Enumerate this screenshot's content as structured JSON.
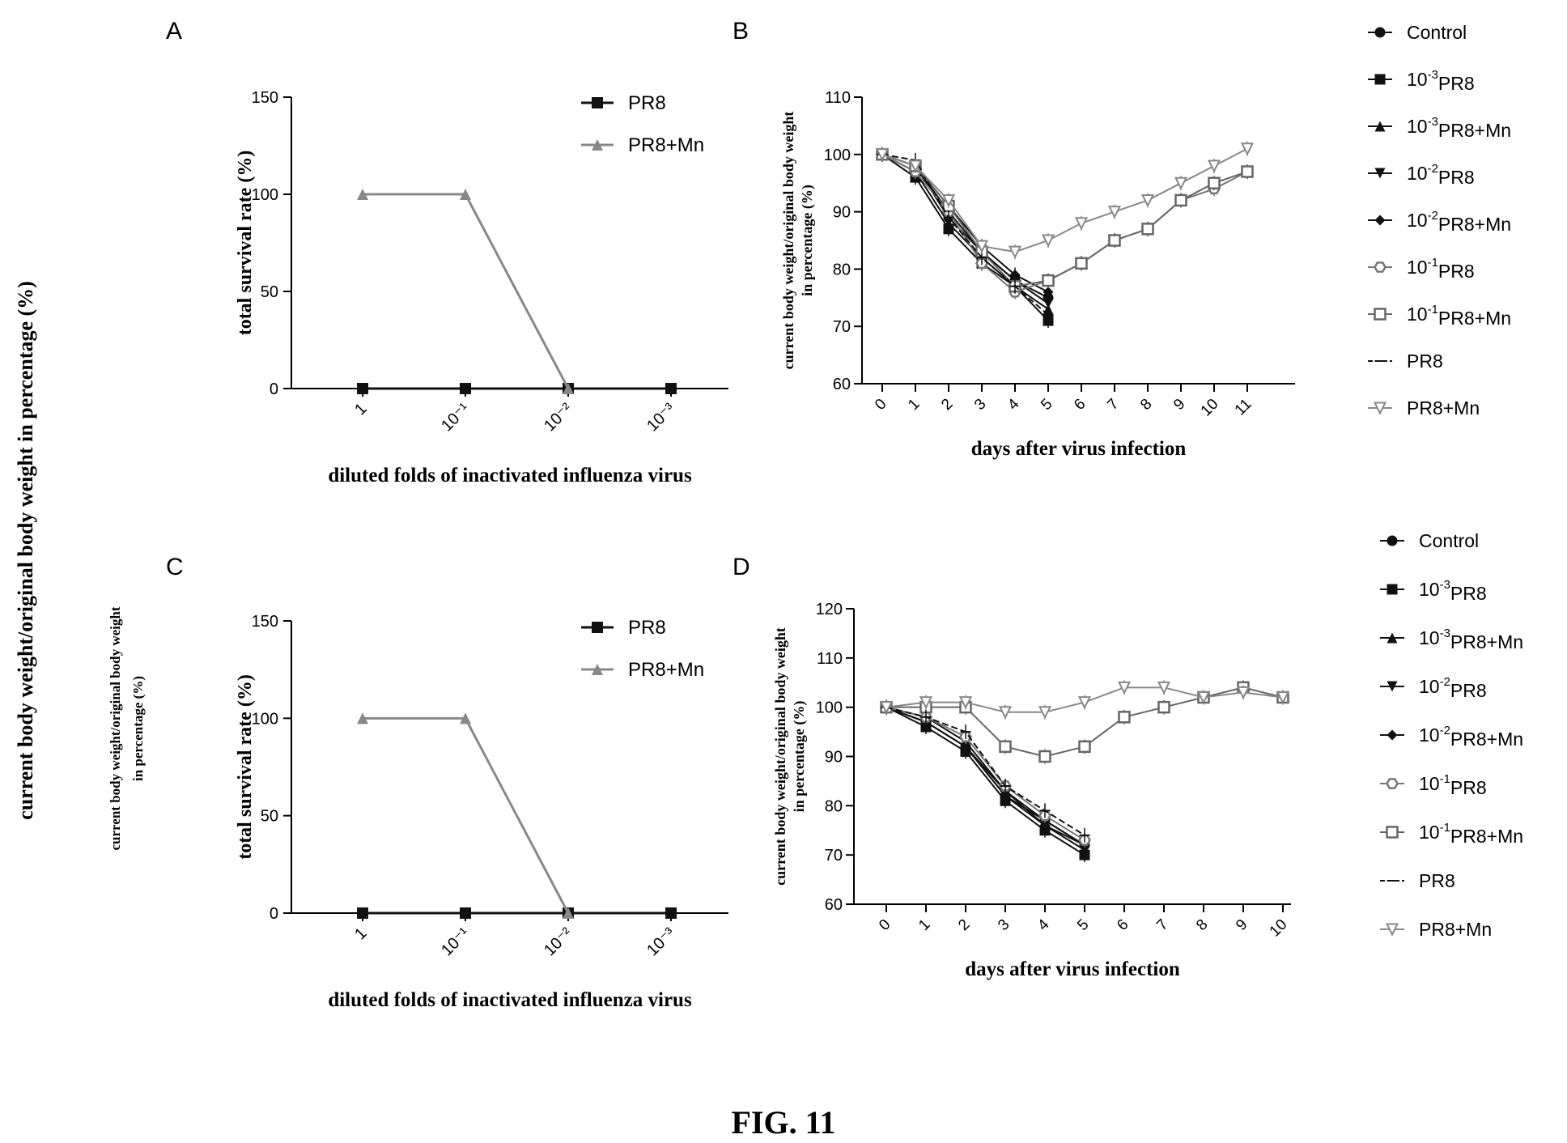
{
  "figure": {
    "caption": "FIG. 11",
    "side_label": "current body weight/original body weight in percentage (%)",
    "side_label_c_line1": "current body weight/original body weight",
    "side_label_c_line2": "in percentage (%)"
  },
  "chart_data": [
    {
      "panel": "A",
      "type": "line",
      "xlabel": "diluted folds of inactivated influenza virus",
      "ylabel": "total survival rate (%)",
      "categories": [
        "1",
        "10⁻¹",
        "10⁻²",
        "10⁻³"
      ],
      "ylim": [
        0,
        150
      ],
      "yticks": [
        0,
        50,
        100,
        150
      ],
      "legend_position": "top-right",
      "series": [
        {
          "name": "PR8",
          "marker": "square",
          "color": "#111111",
          "values": [
            0,
            0,
            0,
            0
          ]
        },
        {
          "name": "PR8+Mn",
          "marker": "triangle",
          "color": "#888888",
          "values": [
            100,
            100,
            0,
            null
          ]
        }
      ]
    },
    {
      "panel": "B",
      "type": "line",
      "xlabel": "days after virus infection",
      "ylabel_line1": "current body weight/original body weight",
      "ylabel_line2": "in percentage (%)",
      "x": [
        0,
        1,
        2,
        3,
        4,
        5,
        6,
        7,
        8,
        9,
        10,
        11
      ],
      "ylim": [
        60,
        110
      ],
      "yticks": [
        60,
        70,
        80,
        90,
        100,
        110
      ],
      "legend_position": "right",
      "series": [
        {
          "name": "Control",
          "sup": "",
          "marker": "circle",
          "color": "#111111",
          "values": [
            100,
            98,
            89,
            83,
            78,
            75,
            null,
            null,
            null,
            null,
            null,
            null
          ]
        },
        {
          "name": "PR8",
          "sup": "-3",
          "prefix": "10",
          "marker": "square",
          "color": "#111111",
          "values": [
            100,
            96,
            87,
            81,
            77,
            71,
            null,
            null,
            null,
            null,
            null,
            null
          ]
        },
        {
          "name": "PR8+Mn",
          "sup": "-3",
          "prefix": "10",
          "marker": "triangle",
          "color": "#111111",
          "values": [
            100,
            97,
            88,
            82,
            77,
            73,
            null,
            null,
            null,
            null,
            null,
            null
          ]
        },
        {
          "name": "PR8",
          "sup": "-2",
          "prefix": "10",
          "marker": "triangle-down",
          "color": "#111111",
          "values": [
            100,
            98,
            90,
            83,
            78,
            74,
            null,
            null,
            null,
            null,
            null,
            null
          ]
        },
        {
          "name": "PR8+Mn",
          "sup": "-2",
          "prefix": "10",
          "marker": "diamond",
          "color": "#111111",
          "values": [
            100,
            98,
            91,
            84,
            79,
            76,
            null,
            null,
            null,
            null,
            null,
            null
          ]
        },
        {
          "name": "PR8",
          "sup": "-1",
          "prefix": "10",
          "marker": "hexagon",
          "color": "#777777",
          "values": [
            100,
            97,
            90,
            81,
            76,
            78,
            81,
            85,
            87,
            92,
            94,
            97
          ]
        },
        {
          "name": "PR8+Mn",
          "sup": "-1",
          "prefix": "10",
          "marker": "square-open",
          "color": "#666666",
          "values": [
            100,
            98,
            91,
            83,
            77,
            78,
            81,
            85,
            87,
            92,
            95,
            97
          ]
        },
        {
          "name": "PR8",
          "sup": "",
          "marker": "dash",
          "color": "#111111",
          "values": [
            100,
            99,
            89,
            82,
            77,
            72,
            null,
            null,
            null,
            null,
            null,
            null
          ]
        },
        {
          "name": "PR8+Mn",
          "sup": "",
          "marker": "triangle-down-open",
          "color": "#888888",
          "values": [
            100,
            98,
            92,
            84,
            83,
            85,
            88,
            90,
            92,
            95,
            98,
            101
          ]
        }
      ]
    },
    {
      "panel": "C",
      "type": "line",
      "xlabel": "diluted folds of inactivated influenza virus",
      "ylabel": "total survival rate (%)",
      "categories": [
        "1",
        "10⁻¹",
        "10⁻²",
        "10⁻³"
      ],
      "ylim": [
        0,
        150
      ],
      "yticks": [
        0,
        50,
        100,
        150
      ],
      "legend_position": "top-right",
      "series": [
        {
          "name": "PR8",
          "marker": "square",
          "color": "#111111",
          "values": [
            0,
            0,
            0,
            0
          ]
        },
        {
          "name": "PR8+Mn",
          "marker": "triangle",
          "color": "#888888",
          "values": [
            100,
            100,
            0,
            null
          ]
        }
      ]
    },
    {
      "panel": "D",
      "type": "line",
      "xlabel": "days after virus infection",
      "ylabel_line1": "current body weight/original body weight",
      "ylabel_line2": "in percentage (%)",
      "x": [
        0,
        1,
        2,
        3,
        4,
        5,
        6,
        7,
        8,
        9,
        10
      ],
      "ylim": [
        60,
        120
      ],
      "yticks": [
        60,
        70,
        80,
        90,
        100,
        110,
        120
      ],
      "legend_position": "right",
      "series": [
        {
          "name": "Control",
          "sup": "",
          "marker": "circle",
          "color": "#111111",
          "values": [
            100,
            97,
            92,
            82,
            77,
            72,
            null,
            null,
            null,
            null,
            null
          ]
        },
        {
          "name": "PR8",
          "sup": "-3",
          "prefix": "10",
          "marker": "square",
          "color": "#111111",
          "values": [
            100,
            96,
            91,
            81,
            75,
            70,
            null,
            null,
            null,
            null,
            null
          ]
        },
        {
          "name": "PR8+Mn",
          "sup": "-3",
          "prefix": "10",
          "marker": "triangle",
          "color": "#111111",
          "values": [
            100,
            97,
            92,
            82,
            76,
            71,
            null,
            null,
            null,
            null,
            null
          ]
        },
        {
          "name": "PR8",
          "sup": "-2",
          "prefix": "10",
          "marker": "triangle-down",
          "color": "#111111",
          "values": [
            100,
            98,
            93,
            83,
            77,
            72,
            null,
            null,
            null,
            null,
            null
          ]
        },
        {
          "name": "PR8+Mn",
          "sup": "-2",
          "prefix": "10",
          "marker": "diamond",
          "color": "#111111",
          "values": [
            100,
            97,
            92,
            83,
            76,
            72,
            null,
            null,
            null,
            null,
            null
          ]
        },
        {
          "name": "PR8",
          "sup": "-1",
          "prefix": "10",
          "marker": "hexagon",
          "color": "#777777",
          "values": [
            100,
            98,
            94,
            84,
            78,
            73,
            null,
            null,
            null,
            null,
            null
          ]
        },
        {
          "name": "PR8+Mn",
          "sup": "-1",
          "prefix": "10",
          "marker": "square-open",
          "color": "#666666",
          "values": [
            100,
            100,
            100,
            92,
            90,
            92,
            98,
            100,
            102,
            104,
            102
          ]
        },
        {
          "name": "PR8",
          "sup": "",
          "marker": "dash",
          "color": "#111111",
          "values": [
            100,
            98,
            95,
            84,
            79,
            74,
            null,
            null,
            null,
            null,
            null
          ]
        },
        {
          "name": "PR8+Mn",
          "sup": "",
          "marker": "triangle-down-open",
          "color": "#888888",
          "values": [
            100,
            101,
            101,
            99,
            99,
            101,
            104,
            104,
            102,
            103,
            102
          ]
        }
      ]
    }
  ]
}
